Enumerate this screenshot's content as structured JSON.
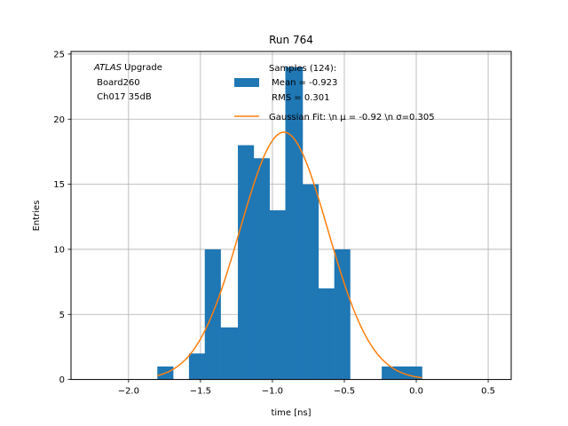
{
  "chart_data": {
    "type": "bar",
    "title": "Run 764",
    "xlabel": "time [ns]",
    "ylabel": "Entries",
    "xlim": [
      -2.4,
      0.66
    ],
    "ylim": [
      0,
      25.2
    ],
    "grid": true,
    "xticks": [
      -2.0,
      -1.5,
      -1.0,
      -0.5,
      0.0,
      0.5
    ],
    "xtick_labels": [
      "−2.0",
      "−1.5",
      "−1.0",
      "−0.5",
      "0.0",
      "0.5"
    ],
    "yticks": [
      0,
      5,
      10,
      15,
      20,
      25
    ],
    "ytick_labels": [
      "0",
      "5",
      "10",
      "15",
      "20",
      "25"
    ],
    "annotation": {
      "line1_italic": "ATLAS",
      "line1_rest": " Upgrade",
      "line2": " Board260",
      "line3": " Ch017 35dB"
    },
    "legend": {
      "placement": "top-right",
      "entries": [
        {
          "kind": "patch",
          "color": "#1f77b4",
          "lines": [
            "Samples (124):",
            " Mean = -0.923",
            " RMS = 0.301"
          ]
        },
        {
          "kind": "line",
          "color": "#ff7f0e",
          "lines": [
            "Gaussian Fit: \\n μ = -0.92 \\n σ=0.305"
          ]
        }
      ]
    },
    "series": [
      {
        "name": "Samples (124):",
        "type": "histogram",
        "color": "#1f77b4",
        "bins": [
          {
            "x0": -1.8,
            "x1": -1.69,
            "count": 1
          },
          {
            "x0": -1.69,
            "x1": -1.58,
            "count": 0
          },
          {
            "x0": -1.58,
            "x1": -1.47,
            "count": 2
          },
          {
            "x0": -1.47,
            "x1": -1.36,
            "count": 10
          },
          {
            "x0": -1.36,
            "x1": -1.24,
            "count": 4
          },
          {
            "x0": -1.24,
            "x1": -1.13,
            "count": 18
          },
          {
            "x0": -1.13,
            "x1": -1.02,
            "count": 17
          },
          {
            "x0": -1.02,
            "x1": -0.91,
            "count": 13
          },
          {
            "x0": -0.91,
            "x1": -0.79,
            "count": 24
          },
          {
            "x0": -0.79,
            "x1": -0.68,
            "count": 15
          },
          {
            "x0": -0.68,
            "x1": -0.57,
            "count": 7
          },
          {
            "x0": -0.57,
            "x1": -0.46,
            "count": 10
          },
          {
            "x0": -0.46,
            "x1": -0.35,
            "count": 0
          },
          {
            "x0": -0.35,
            "x1": -0.24,
            "count": 0
          },
          {
            "x0": -0.24,
            "x1": -0.12,
            "count": 1
          },
          {
            "x0": -0.12,
            "x1": -0.01,
            "count": 1
          },
          {
            "x0": -0.01,
            "x1": 0.04,
            "count": 1
          }
        ]
      },
      {
        "name": "Gaussian Fit",
        "type": "line",
        "color": "#ff7f0e",
        "mu": -0.92,
        "sigma": 0.305,
        "amplitude": 19.0,
        "x_range": [
          -1.8,
          0.04
        ]
      }
    ]
  }
}
